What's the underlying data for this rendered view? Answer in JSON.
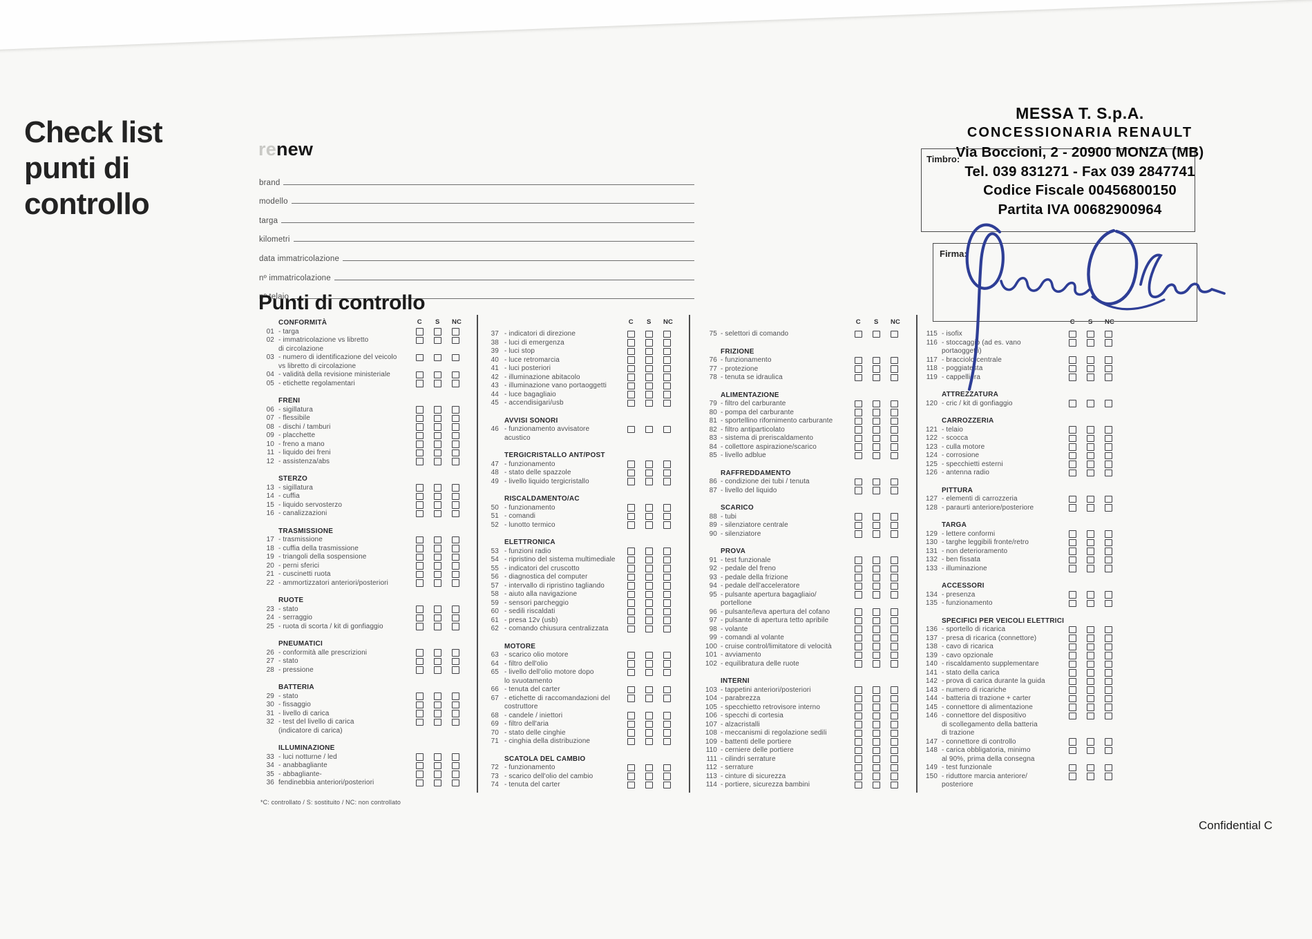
{
  "page": {
    "background": "#f8f8f6",
    "confidential": "Confidential C"
  },
  "header": {
    "title": "Check list\npunti di\ncontrollo",
    "logo_re": "re",
    "logo_new": "new"
  },
  "form": {
    "fields": [
      "brand",
      "modello",
      "targa",
      "kilometri",
      "data immatricolazione",
      "nº immatricolazione",
      "nº telaio"
    ]
  },
  "stamp": {
    "timbro_label": "Timbro:",
    "firma_label": "Firma:",
    "lines": [
      "MESSA T. S.p.A.",
      "CONCESSIONARIA RENAULT",
      "Via Boccioni, 2 - 20900 MONZA (MB)",
      "Tel. 039 831271 - Fax 039 2847741",
      "Codice Fiscale 00456800150",
      "Partita IVA 00682900964"
    ],
    "signature_color": "#2e3e96"
  },
  "checklist": {
    "title": "Punti di controllo",
    "box_headers": [
      "C",
      "S",
      "NC"
    ],
    "footnote": "*C: controllato / S: sostituito / NC: non controllato",
    "columns": [
      {
        "blocks": [
          {
            "h": "CONFORMITÀ"
          },
          {
            "n": "01",
            "t": "- targa"
          },
          {
            "n": "02",
            "t": "- immatricolazione vs libretto\ndi circolazione"
          },
          {
            "n": "03",
            "t": "- numero di identificazione del veicolo\nvs libretto di circolazione"
          },
          {
            "n": "04",
            "t": "- validità della revisione ministeriale"
          },
          {
            "n": "05",
            "t": "- etichette regolamentari"
          },
          {
            "h": "FRENI"
          },
          {
            "n": "06",
            "t": "- sigillatura"
          },
          {
            "n": "07",
            "t": "- flessibile"
          },
          {
            "n": "08",
            "t": "- dischi / tamburi"
          },
          {
            "n": "09",
            "t": "- placchette"
          },
          {
            "n": "10",
            "t": "- freno a mano"
          },
          {
            "n": "11",
            "t": "- liquido dei freni"
          },
          {
            "n": "12",
            "t": "- assistenza/abs"
          },
          {
            "h": "STERZO"
          },
          {
            "n": "13",
            "t": "- sigillatura"
          },
          {
            "n": "14",
            "t": "- cuffia"
          },
          {
            "n": "15",
            "t": "- liquido servosterzo"
          },
          {
            "n": "16",
            "t": "- canalizzazioni"
          },
          {
            "h": "TRASMISSIONE"
          },
          {
            "n": "17",
            "t": "- trasmissione"
          },
          {
            "n": "18",
            "t": "- cuffia della trasmissione"
          },
          {
            "n": "19",
            "t": "- triangoli della sospensione"
          },
          {
            "n": "20",
            "t": "- perni sferici"
          },
          {
            "n": "21",
            "t": "- cuscinetti ruota"
          },
          {
            "n": "22",
            "t": "- ammortizzatori anteriori/posteriori"
          },
          {
            "h": "RUOTE"
          },
          {
            "n": "23",
            "t": "- stato"
          },
          {
            "n": "24",
            "t": "- serraggio"
          },
          {
            "n": "25",
            "t": "- ruota di scorta / kit di gonfiaggio"
          },
          {
            "h": "PNEUMATICI"
          },
          {
            "n": "26",
            "t": "- conformità alle prescrizioni"
          },
          {
            "n": "27",
            "t": "- stato"
          },
          {
            "n": "28",
            "t": "- pressione"
          },
          {
            "h": "BATTERIA"
          },
          {
            "n": "29",
            "t": "- stato"
          },
          {
            "n": "30",
            "t": "- fissaggio"
          },
          {
            "n": "31",
            "t": "- livello di carica"
          },
          {
            "n": "32",
            "t": "- test del livello di carica\n(indicatore di carica)"
          },
          {
            "h": "ILLUMINAZIONE"
          },
          {
            "n": "33",
            "t": "- luci notturne / led"
          },
          {
            "n": "34",
            "t": "- anabbagliante"
          },
          {
            "n": "35",
            "t": "- abbagliante-"
          },
          {
            "n": "36",
            "t": "fendinebbia anteriori/posteriori"
          }
        ]
      },
      {
        "blocks": [
          {
            "n": "37",
            "t": "- indicatori di direzione"
          },
          {
            "n": "38",
            "t": "- luci di emergenza"
          },
          {
            "n": "39",
            "t": "- luci stop"
          },
          {
            "n": "40",
            "t": "- luce retromarcia"
          },
          {
            "n": "41",
            "t": "- luci posteriori"
          },
          {
            "n": "42",
            "t": "- illuminazione abitacolo"
          },
          {
            "n": "43",
            "t": "- illuminazione vano portaoggetti"
          },
          {
            "n": "44",
            "t": "- luce bagagliaio"
          },
          {
            "n": "45",
            "t": "- accendisigari/usb"
          },
          {
            "h": "AVVISI SONORI"
          },
          {
            "n": "46",
            "t": "- funzionamento avvisatore\nacustico"
          },
          {
            "h": "TERGICRISTALLO ANT/POST"
          },
          {
            "n": "47",
            "t": "- funzionamento"
          },
          {
            "n": "48",
            "t": "- stato delle spazzole"
          },
          {
            "n": "49",
            "t": "- livello liquido tergicristallo"
          },
          {
            "h": "RISCALDAMENTO/AC"
          },
          {
            "n": "50",
            "t": "- funzionamento"
          },
          {
            "n": "51",
            "t": "- comandi"
          },
          {
            "n": "52",
            "t": "- lunotto termico"
          },
          {
            "h": "ELETTRONICA"
          },
          {
            "n": "53",
            "t": "- funzioni radio"
          },
          {
            "n": "54",
            "t": "- ripristino del sistema multimediale"
          },
          {
            "n": "55",
            "t": "- indicatori del cruscotto"
          },
          {
            "n": "56",
            "t": "- diagnostica del computer"
          },
          {
            "n": "57",
            "t": "- intervallo di ripristino tagliando"
          },
          {
            "n": "58",
            "t": "- aiuto alla navigazione"
          },
          {
            "n": "59",
            "t": "- sensori parcheggio"
          },
          {
            "n": "60",
            "t": "- sedili riscaldati"
          },
          {
            "n": "61",
            "t": "- presa 12v (usb)"
          },
          {
            "n": "62",
            "t": "- comando chiusura centralizzata"
          },
          {
            "h": "MOTORE"
          },
          {
            "n": "63",
            "t": "- scarico olio motore"
          },
          {
            "n": "64",
            "t": "- filtro dell'olio"
          },
          {
            "n": "65",
            "t": "- livello dell'olio motore dopo\nlo svuotamento"
          },
          {
            "n": "66",
            "t": "- tenuta del carter"
          },
          {
            "n": "67",
            "t": "- etichette di raccomandazioni del\ncostruttore"
          },
          {
            "n": "68",
            "t": "- candele / iniettori"
          },
          {
            "n": "69",
            "t": "- filtro dell'aria"
          },
          {
            "n": "70",
            "t": "- stato delle cinghie"
          },
          {
            "n": "71",
            "t": "- cinghia della distribuzione"
          },
          {
            "h": "SCATOLA DEL CAMBIO"
          },
          {
            "n": "72",
            "t": "- funzionamento"
          },
          {
            "n": "73",
            "t": "- scarico dell'olio del cambio"
          },
          {
            "n": "74",
            "t": "- tenuta del carter"
          }
        ]
      },
      {
        "blocks": [
          {
            "n": "75",
            "t": "- selettori di comando"
          },
          {
            "h": "FRIZIONE"
          },
          {
            "n": "76",
            "t": "- funzionamento"
          },
          {
            "n": "77",
            "t": "- protezione"
          },
          {
            "n": "78",
            "t": "- tenuta se idraulica"
          },
          {
            "h": "ALIMENTAZIONE"
          },
          {
            "n": "79",
            "t": "- filtro del carburante"
          },
          {
            "n": "80",
            "t": "- pompa del carburante"
          },
          {
            "n": "81",
            "t": "- sportellino rifornimento carburante"
          },
          {
            "n": "82",
            "t": "- filtro antiparticolato"
          },
          {
            "n": "83",
            "t": "- sistema di preriscaldamento"
          },
          {
            "n": "84",
            "t": "- collettore aspirazione/scarico"
          },
          {
            "n": "85",
            "t": "- livello adblue"
          },
          {
            "h": "RAFFREDDAMENTO"
          },
          {
            "n": "86",
            "t": "- condizione dei tubi / tenuta"
          },
          {
            "n": "87",
            "t": "- livello del liquido"
          },
          {
            "h": "SCARICO"
          },
          {
            "n": "88",
            "t": "- tubi"
          },
          {
            "n": "89",
            "t": "- silenziatore centrale"
          },
          {
            "n": "90",
            "t": "- silenziatore"
          },
          {
            "h": "PROVA"
          },
          {
            "n": "91",
            "t": "- test funzionale"
          },
          {
            "n": "92",
            "t": "- pedale del freno"
          },
          {
            "n": "93",
            "t": "- pedale della frizione"
          },
          {
            "n": "94",
            "t": "- pedale dell'acceleratore"
          },
          {
            "n": "95",
            "t": "- pulsante apertura bagagliaio/\nportellone"
          },
          {
            "n": "96",
            "t": "- pulsante/leva apertura del cofano"
          },
          {
            "n": "97",
            "t": "- pulsante di apertura tetto apribile"
          },
          {
            "n": "98",
            "t": "- volante"
          },
          {
            "n": "99",
            "t": "- comandi al volante"
          },
          {
            "n": "100",
            "t": "- cruise control/limitatore di velocità"
          },
          {
            "n": "101",
            "t": "- avviamento"
          },
          {
            "n": "102",
            "t": "- equilibratura delle ruote"
          },
          {
            "h": "INTERNI"
          },
          {
            "n": "103",
            "t": "- tappetini anteriori/posteriori"
          },
          {
            "n": "104",
            "t": "- parabrezza"
          },
          {
            "n": "105",
            "t": "- specchietto retrovisore interno"
          },
          {
            "n": "106",
            "t": "- specchi di cortesia"
          },
          {
            "n": "107",
            "t": "- alzacristalli"
          },
          {
            "n": "108",
            "t": "- meccanismi di regolazione sedili"
          },
          {
            "n": "109",
            "t": "- battenti delle portiere"
          },
          {
            "n": "110",
            "t": "- cerniere delle portiere"
          },
          {
            "n": "111",
            "t": "- cilindri serrature"
          },
          {
            "n": "112",
            "t": "- serrature"
          },
          {
            "n": "113",
            "t": "- cinture di sicurezza"
          },
          {
            "n": "114",
            "t": "- portiere, sicurezza bambini"
          }
        ]
      },
      {
        "blocks": [
          {
            "n": "115",
            "t": "- isofix"
          },
          {
            "n": "116",
            "t": "- stoccaggio (ad es. vano\nportaoggetti)"
          },
          {
            "n": "117",
            "t": "- bracciolo centrale"
          },
          {
            "n": "118",
            "t": "- poggiatesta"
          },
          {
            "n": "119",
            "t": "- cappelliera"
          },
          {
            "h": "ATTREZZATURA"
          },
          {
            "n": "120",
            "t": "- cric / kit di gonfiaggio"
          },
          {
            "h": "CARROZZERIA"
          },
          {
            "n": "121",
            "t": "- telaio"
          },
          {
            "n": "122",
            "t": "- scocca"
          },
          {
            "n": "123",
            "t": "- culla motore"
          },
          {
            "n": "124",
            "t": "- corrosione"
          },
          {
            "n": "125",
            "t": "- specchietti esterni"
          },
          {
            "n": "126",
            "t": "- antenna radio"
          },
          {
            "h": "PITTURA"
          },
          {
            "n": "127",
            "t": "- elementi di carrozzeria"
          },
          {
            "n": "128",
            "t": "- paraurti anteriore/posteriore"
          },
          {
            "h": "TARGA"
          },
          {
            "n": "129",
            "t": "- lettere conformi"
          },
          {
            "n": "130",
            "t": "- targhe leggibili fronte/retro"
          },
          {
            "n": "131",
            "t": "- non deterioramento"
          },
          {
            "n": "132",
            "t": "- ben fissata"
          },
          {
            "n": "133",
            "t": "- illuminazione"
          },
          {
            "h": "ACCESSORI"
          },
          {
            "n": "134",
            "t": "- presenza"
          },
          {
            "n": "135",
            "t": "- funzionamento"
          },
          {
            "h": "SPECIFICI PER VEICOLI ELETTRICI"
          },
          {
            "n": "136",
            "t": "- sportello di ricarica"
          },
          {
            "n": "137",
            "t": "- presa di ricarica (connettore)"
          },
          {
            "n": "138",
            "t": "- cavo di ricarica"
          },
          {
            "n": "139",
            "t": "- cavo opzionale"
          },
          {
            "n": "140",
            "t": "- riscaldamento supplementare"
          },
          {
            "n": "141",
            "t": "- stato della carica"
          },
          {
            "n": "142",
            "t": "- prova di carica durante la guida"
          },
          {
            "n": "143",
            "t": "- numero di ricariche"
          },
          {
            "n": "144",
            "t": "- batteria di trazione + carter"
          },
          {
            "n": "145",
            "t": "- connettore di alimentazione"
          },
          {
            "n": "146",
            "t": "- connettore del dispositivo\ndi scollegamento della batteria\ndi trazione"
          },
          {
            "n": "147",
            "t": "- connettore di controllo"
          },
          {
            "n": "148",
            "t": "- carica obbligatoria, minimo\nal 90%, prima della consegna"
          },
          {
            "n": "149",
            "t": "- test funzionale"
          },
          {
            "n": "150",
            "t": "- riduttore marcia anteriore/\nposteriore"
          }
        ]
      }
    ]
  }
}
